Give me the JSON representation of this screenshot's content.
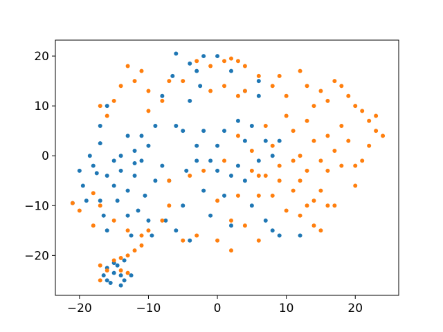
{
  "chart_data": {
    "type": "scatter",
    "xlim": [
      -23.5,
      26.3
    ],
    "ylim": [
      -28,
      23.2
    ],
    "xticks": [
      {
        "value": -20,
        "label": "−20"
      },
      {
        "value": -10,
        "label": "−10"
      },
      0,
      10,
      20
    ],
    "yticks": [
      {
        "value": -20,
        "label": "−20"
      },
      {
        "value": -10,
        "label": "−10"
      },
      0,
      10,
      20
    ],
    "series": [
      {
        "color": "#1f77b4",
        "x": [
          -16,
          -15.5,
          -16.5,
          -15,
          -14,
          -13.5,
          -14.5,
          -16,
          -15,
          -13.5,
          -12.5,
          -14,
          -21,
          -20,
          -19.5,
          -19,
          -18.5,
          -18,
          -17.5,
          -17,
          -17,
          -16.5,
          -16,
          -16,
          -15,
          -15,
          -14.5,
          -14,
          -13,
          -13,
          -12.5,
          -12,
          -12,
          -11.5,
          -11,
          -10.5,
          -10,
          -9.5,
          -9,
          -8,
          -7.5,
          -7,
          -6,
          -5,
          -4.5,
          -4,
          -3,
          -2,
          -1,
          0,
          1,
          2,
          3,
          4,
          5,
          6,
          7,
          8,
          9,
          12,
          -17,
          -16,
          -13,
          -12,
          -10,
          -9,
          -8,
          -6,
          -5,
          -4,
          -3,
          -2,
          -1,
          0,
          1,
          2,
          3,
          4,
          5,
          6,
          7,
          8,
          -6,
          -4,
          -2,
          -3,
          0,
          2,
          -6.5,
          -2.5,
          -14,
          -11,
          4,
          6,
          9
        ],
        "y": [
          -25,
          -25.5,
          -24,
          -23.5,
          -24,
          -25,
          -22,
          -22.5,
          -21.5,
          -21,
          -24,
          -26,
          -9.5,
          -3,
          -6,
          -9,
          0,
          -2,
          -3.5,
          2.5,
          -9,
          -12,
          -15,
          -4,
          -1,
          -6,
          -9,
          -3,
          -7,
          -12,
          -16,
          -4,
          1,
          -11,
          -1,
          -8,
          -13,
          -16,
          -5,
          -2,
          -13,
          -5,
          -15,
          -10,
          -3,
          -17,
          -1,
          -7,
          -12,
          -3,
          -8,
          -14,
          -2,
          -5,
          -10,
          -1,
          -13,
          -15,
          -16,
          -16,
          6,
          10,
          4,
          -1.5,
          2,
          6,
          12,
          6,
          5,
          11,
          2,
          5,
          -1,
          2,
          5,
          -4,
          7,
          3,
          6,
          12,
          3,
          0,
          20.5,
          18.5,
          20,
          17,
          20,
          17,
          16,
          14,
          0,
          4,
          13,
          15,
          3
        ]
      },
      {
        "color": "#ff7f0e",
        "x": [
          -17,
          -16,
          -15,
          -14,
          -13,
          -13,
          -12,
          -11,
          -17,
          -14,
          -21,
          -20,
          -18,
          -18,
          -17,
          -15,
          -13,
          -11,
          -10,
          -8,
          -7,
          -5,
          -3,
          0,
          2,
          2,
          4,
          6,
          6,
          8,
          10,
          12,
          13,
          14,
          16,
          17,
          15,
          -7,
          -4,
          -2,
          0,
          3,
          5,
          7,
          9,
          11,
          12,
          14,
          15,
          -17,
          -16,
          -15,
          -14,
          -13,
          -12,
          -11,
          -10,
          -10,
          -8,
          -7,
          -5,
          -3,
          -1,
          1,
          2,
          3,
          4,
          -1,
          1,
          3,
          4,
          6,
          8,
          9,
          10,
          12,
          13,
          14,
          15,
          16,
          17,
          18,
          19,
          20,
          21,
          22,
          23,
          24,
          23,
          22,
          21,
          20,
          19,
          18,
          17,
          16,
          15,
          14,
          13,
          12,
          11,
          10,
          9,
          8,
          7,
          6,
          5,
          20,
          18,
          16,
          11,
          13,
          3,
          1
        ],
        "y": [
          -22,
          -23,
          -21,
          -23,
          -20,
          -23.5,
          -19,
          -18,
          -25,
          -20.5,
          -9.5,
          -11,
          -7.5,
          -14,
          -10,
          -13,
          -15,
          -16,
          -15,
          -13,
          -10,
          -17,
          -16,
          -17,
          -19,
          -13,
          -14,
          -17,
          -8,
          -8,
          -11,
          -12,
          -10,
          -14,
          -10,
          -10,
          -15,
          -5,
          -4,
          -3,
          -9,
          -8,
          -3,
          -4,
          -5,
          -7,
          -5,
          -9,
          -7,
          10,
          8,
          11,
          14,
          18,
          15,
          17,
          13,
          9,
          11,
          15,
          15,
          19,
          18,
          19,
          19.5,
          19,
          18,
          13,
          14,
          12,
          13,
          16,
          14,
          16,
          12,
          17,
          14,
          10,
          13,
          11,
          15,
          14,
          12,
          10,
          9,
          7,
          5,
          4,
          8,
          2,
          -1,
          -2,
          3,
          6,
          1,
          4,
          -1,
          3,
          7,
          0,
          5,
          8,
          -2,
          2,
          6,
          -4,
          1,
          -6,
          -2,
          -3,
          -1,
          -3,
          4,
          -1
        ]
      }
    ]
  }
}
